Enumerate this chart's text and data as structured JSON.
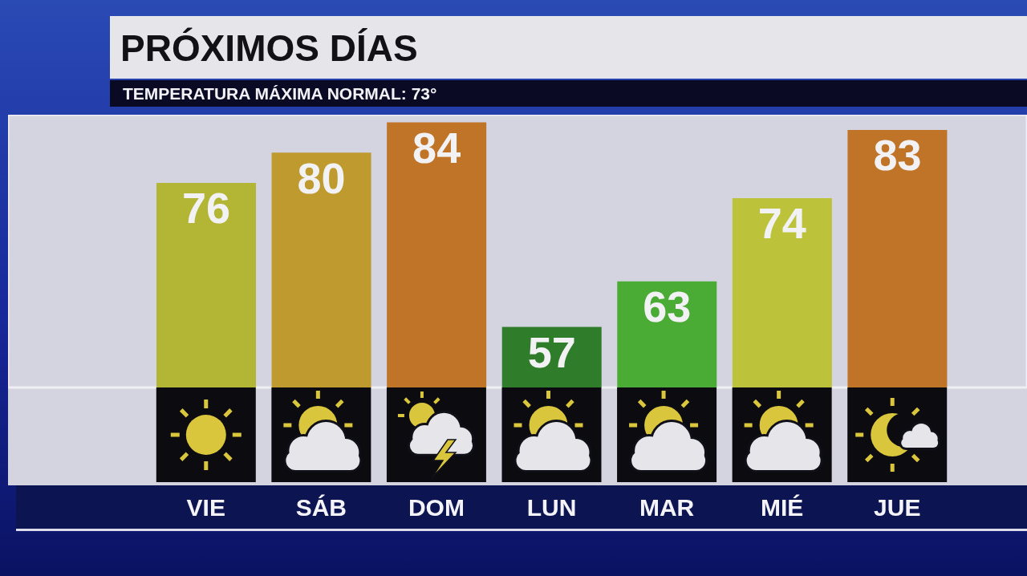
{
  "chart_data": {
    "type": "bar",
    "title": "PRÓXIMOS DÍAS",
    "subtitle": "TEMPERATURA MÁXIMA NORMAL: 73°",
    "categories": [
      "VIE",
      "SÁB",
      "DOM",
      "LUN",
      "MAR",
      "MIÉ",
      "JUE"
    ],
    "values": [
      76,
      80,
      84,
      57,
      63,
      74,
      83
    ],
    "colors": [
      "#b3b535",
      "#bf9a2e",
      "#bf7428",
      "#2f7d2a",
      "#4aab35",
      "#bcc23a",
      "#bf7428"
    ],
    "ylim": [
      49,
      85
    ],
    "data_labels": true,
    "tick_labels": "x"
  }
}
